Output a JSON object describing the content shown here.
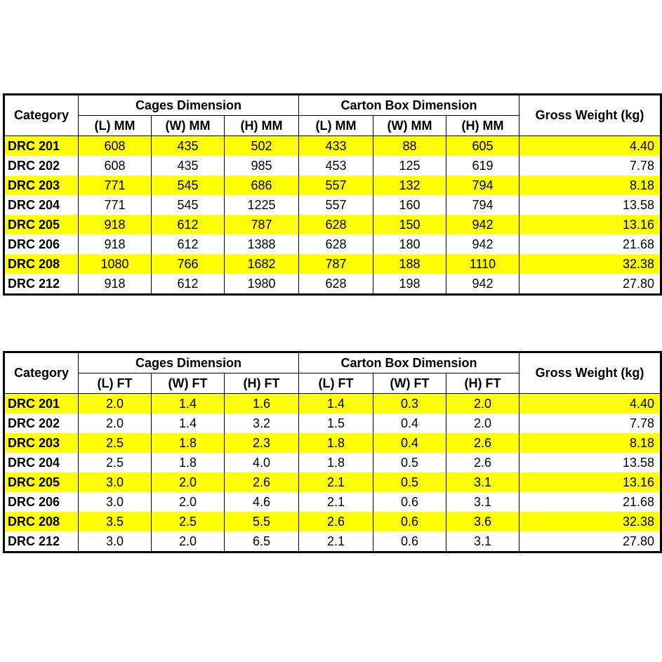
{
  "tables": [
    {
      "category_header": "Category",
      "group_headers": [
        "Cages Dimension",
        "Carton Box Dimension"
      ],
      "weight_header": "Gross Weight (kg)",
      "sub_headers": [
        "(L) MM",
        "(W) MM",
        "(H) MM",
        "(L) MM",
        "(W) MM",
        "(H) MM"
      ],
      "rows": [
        {
          "category": "DRC 201",
          "values": [
            "608",
            "435",
            "502",
            "433",
            "88",
            "605"
          ],
          "weight": "4.40"
        },
        {
          "category": "DRC 202",
          "values": [
            "608",
            "435",
            "985",
            "453",
            "125",
            "619"
          ],
          "weight": "7.78"
        },
        {
          "category": "DRC 203",
          "values": [
            "771",
            "545",
            "686",
            "557",
            "132",
            "794"
          ],
          "weight": "8.18"
        },
        {
          "category": "DRC 204",
          "values": [
            "771",
            "545",
            "1225",
            "557",
            "160",
            "794"
          ],
          "weight": "13.58"
        },
        {
          "category": "DRC 205",
          "values": [
            "918",
            "612",
            "787",
            "628",
            "150",
            "942"
          ],
          "weight": "13.16"
        },
        {
          "category": "DRC 206",
          "values": [
            "918",
            "612",
            "1388",
            "628",
            "180",
            "942"
          ],
          "weight": "21.68"
        },
        {
          "category": "DRC 208",
          "values": [
            "1080",
            "766",
            "1682",
            "787",
            "188",
            "1110"
          ],
          "weight": "32.38"
        },
        {
          "category": "DRC 212",
          "values": [
            "918",
            "612",
            "1980",
            "628",
            "198",
            "942"
          ],
          "weight": "27.80"
        }
      ]
    },
    {
      "category_header": "Category",
      "group_headers": [
        "Cages Dimension",
        "Carton Box Dimension"
      ],
      "weight_header": "Gross Weight (kg)",
      "sub_headers": [
        "(L) FT",
        "(W) FT",
        "(H) FT",
        "(L) FT",
        "(W) FT",
        "(H) FT"
      ],
      "rows": [
        {
          "category": "DRC 201",
          "values": [
            "2.0",
            "1.4",
            "1.6",
            "1.4",
            "0.3",
            "2.0"
          ],
          "weight": "4.40"
        },
        {
          "category": "DRC 202",
          "values": [
            "2.0",
            "1.4",
            "3.2",
            "1.5",
            "0.4",
            "2.0"
          ],
          "weight": "7.78"
        },
        {
          "category": "DRC 203",
          "values": [
            "2.5",
            "1.8",
            "2.3",
            "1.8",
            "0.4",
            "2.6"
          ],
          "weight": "8.18"
        },
        {
          "category": "DRC 204",
          "values": [
            "2.5",
            "1.8",
            "4.0",
            "1.8",
            "0.5",
            "2.6"
          ],
          "weight": "13.58"
        },
        {
          "category": "DRC 205",
          "values": [
            "3.0",
            "2.0",
            "2.6",
            "2.1",
            "0.5",
            "3.1"
          ],
          "weight": "13.16"
        },
        {
          "category": "DRC 206",
          "values": [
            "3.0",
            "2.0",
            "4.6",
            "2.1",
            "0.6",
            "3.1"
          ],
          "weight": "21.68"
        },
        {
          "category": "DRC 208",
          "values": [
            "3.5",
            "2.5",
            "5.5",
            "2.6",
            "0.6",
            "3.6"
          ],
          "weight": "32.38"
        },
        {
          "category": "DRC 212",
          "values": [
            "3.0",
            "2.0",
            "6.5",
            "2.1",
            "0.6",
            "3.1"
          ],
          "weight": "27.80"
        }
      ]
    }
  ]
}
